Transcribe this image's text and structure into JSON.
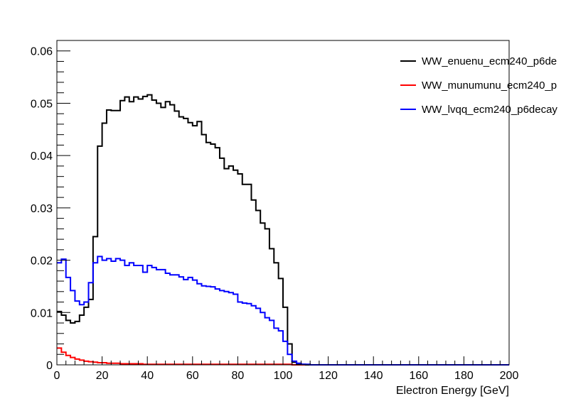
{
  "chart_data": {
    "type": "line",
    "title": "",
    "xlabel": "Electron Energy [GeV]",
    "ylabel": "",
    "xlim": [
      0,
      200
    ],
    "ylim": [
      0,
      0.062
    ],
    "grid": false,
    "legend_position": "top-right",
    "x_ticks": [
      "0",
      "20",
      "40",
      "60",
      "80",
      "100",
      "120",
      "140",
      "160",
      "180",
      "200"
    ],
    "y_ticks": [
      "0",
      "0.01",
      "0.02",
      "0.03",
      "0.04",
      "0.05",
      "0.06"
    ],
    "bin_edges_start": 0,
    "bin_width": 2,
    "series": [
      {
        "name": "WW_enuenu_ecm240_p6de",
        "color": "#000000",
        "values": [
          0.0102,
          0.0095,
          0.0085,
          0.008,
          0.0083,
          0.0095,
          0.011,
          0.0125,
          0.0245,
          0.0418,
          0.0462,
          0.0487,
          0.0486,
          0.0486,
          0.0505,
          0.0512,
          0.0503,
          0.0512,
          0.0508,
          0.0513,
          0.0516,
          0.0506,
          0.05,
          0.0492,
          0.0503,
          0.0497,
          0.0485,
          0.0474,
          0.0471,
          0.0463,
          0.0457,
          0.0465,
          0.044,
          0.0425,
          0.0422,
          0.0415,
          0.0395,
          0.0375,
          0.038,
          0.0372,
          0.0365,
          0.0345,
          0.0345,
          0.0315,
          0.0295,
          0.0271,
          0.026,
          0.0222,
          0.0195,
          0.0165,
          0.011,
          0.004,
          0.0005,
          0.0002,
          0.0001,
          0.0,
          0.0,
          0.0,
          0.0,
          0.0,
          0.0,
          0.0,
          0.0,
          0.0,
          0.0,
          0.0,
          0.0,
          0.0,
          0.0,
          0.0,
          0.0,
          0.0,
          0.0,
          0.0,
          0.0,
          0.0,
          0.0,
          0.0,
          0.0,
          0.0,
          0.0,
          0.0,
          0.0,
          0.0,
          0.0,
          0.0,
          0.0,
          0.0,
          0.0,
          0.0,
          0.0,
          0.0,
          0.0,
          0.0,
          0.0,
          0.0,
          0.0,
          0.0,
          0.0,
          0.0
        ]
      },
      {
        "name": "WW_munumunu_ecm240_p",
        "color": "#ff0000",
        "values": [
          0.0032,
          0.0024,
          0.0018,
          0.0014,
          0.0011,
          0.0009,
          0.0007,
          0.0006,
          0.0005,
          0.0004,
          0.0004,
          0.0003,
          0.0003,
          0.0003,
          0.0002,
          0.0002,
          0.0002,
          0.0002,
          0.0002,
          0.0001,
          0.0001,
          0.0001,
          0.0001,
          0.0001,
          0.0001,
          0.0001,
          0.0001,
          0.0001,
          0.0001,
          0.0001,
          0.0001,
          0.0001,
          0.0001,
          0.0001,
          0.0001,
          0.0001,
          0.0001,
          0.0001,
          0.0001,
          0.0001,
          0.0001,
          0.0001,
          0.0001,
          0.0001,
          0.0001,
          0.0001,
          0.0001,
          0.0001,
          0.0001,
          0.0001,
          0.0001,
          0.0001,
          0.0,
          0.0,
          0.0,
          0.0,
          0.0,
          0.0,
          0.0,
          0.0,
          0.0,
          0.0,
          0.0,
          0.0,
          0.0,
          0.0,
          0.0,
          0.0,
          0.0,
          0.0,
          0.0,
          0.0,
          0.0,
          0.0,
          0.0,
          0.0,
          0.0,
          0.0,
          0.0,
          0.0,
          0.0,
          0.0,
          0.0,
          0.0,
          0.0,
          0.0,
          0.0,
          0.0,
          0.0,
          0.0,
          0.0,
          0.0,
          0.0,
          0.0,
          0.0,
          0.0,
          0.0,
          0.0,
          0.0,
          0.0
        ]
      },
      {
        "name": "WW_lvqq_ecm240_p6decay",
        "color": "#0000ff",
        "values": [
          0.0195,
          0.0202,
          0.0167,
          0.0142,
          0.0122,
          0.0115,
          0.012,
          0.0157,
          0.0195,
          0.0207,
          0.02,
          0.0203,
          0.0198,
          0.0203,
          0.02,
          0.019,
          0.0195,
          0.019,
          0.019,
          0.0177,
          0.019,
          0.0186,
          0.0182,
          0.0182,
          0.0175,
          0.0172,
          0.0172,
          0.0168,
          0.0163,
          0.0167,
          0.0162,
          0.0155,
          0.0151,
          0.015,
          0.0149,
          0.0145,
          0.0142,
          0.014,
          0.0138,
          0.0135,
          0.012,
          0.0118,
          0.0117,
          0.0113,
          0.0108,
          0.01,
          0.009,
          0.0085,
          0.007,
          0.0065,
          0.0045,
          0.002,
          0.0007,
          0.0003,
          0.0001,
          0.0001,
          0.0,
          0.0,
          0.0,
          0.0,
          0.0,
          0.0,
          0.0,
          0.0,
          0.0,
          0.0,
          0.0,
          0.0,
          0.0,
          0.0,
          0.0,
          0.0,
          0.0,
          0.0,
          0.0,
          0.0,
          0.0,
          0.0,
          0.0,
          0.0,
          0.0,
          0.0,
          0.0,
          0.0,
          0.0,
          0.0,
          0.0,
          0.0,
          0.0,
          0.0,
          0.0,
          0.0,
          0.0,
          0.0,
          0.0,
          0.0,
          0.0,
          0.0,
          0.0,
          0.0
        ]
      }
    ]
  }
}
